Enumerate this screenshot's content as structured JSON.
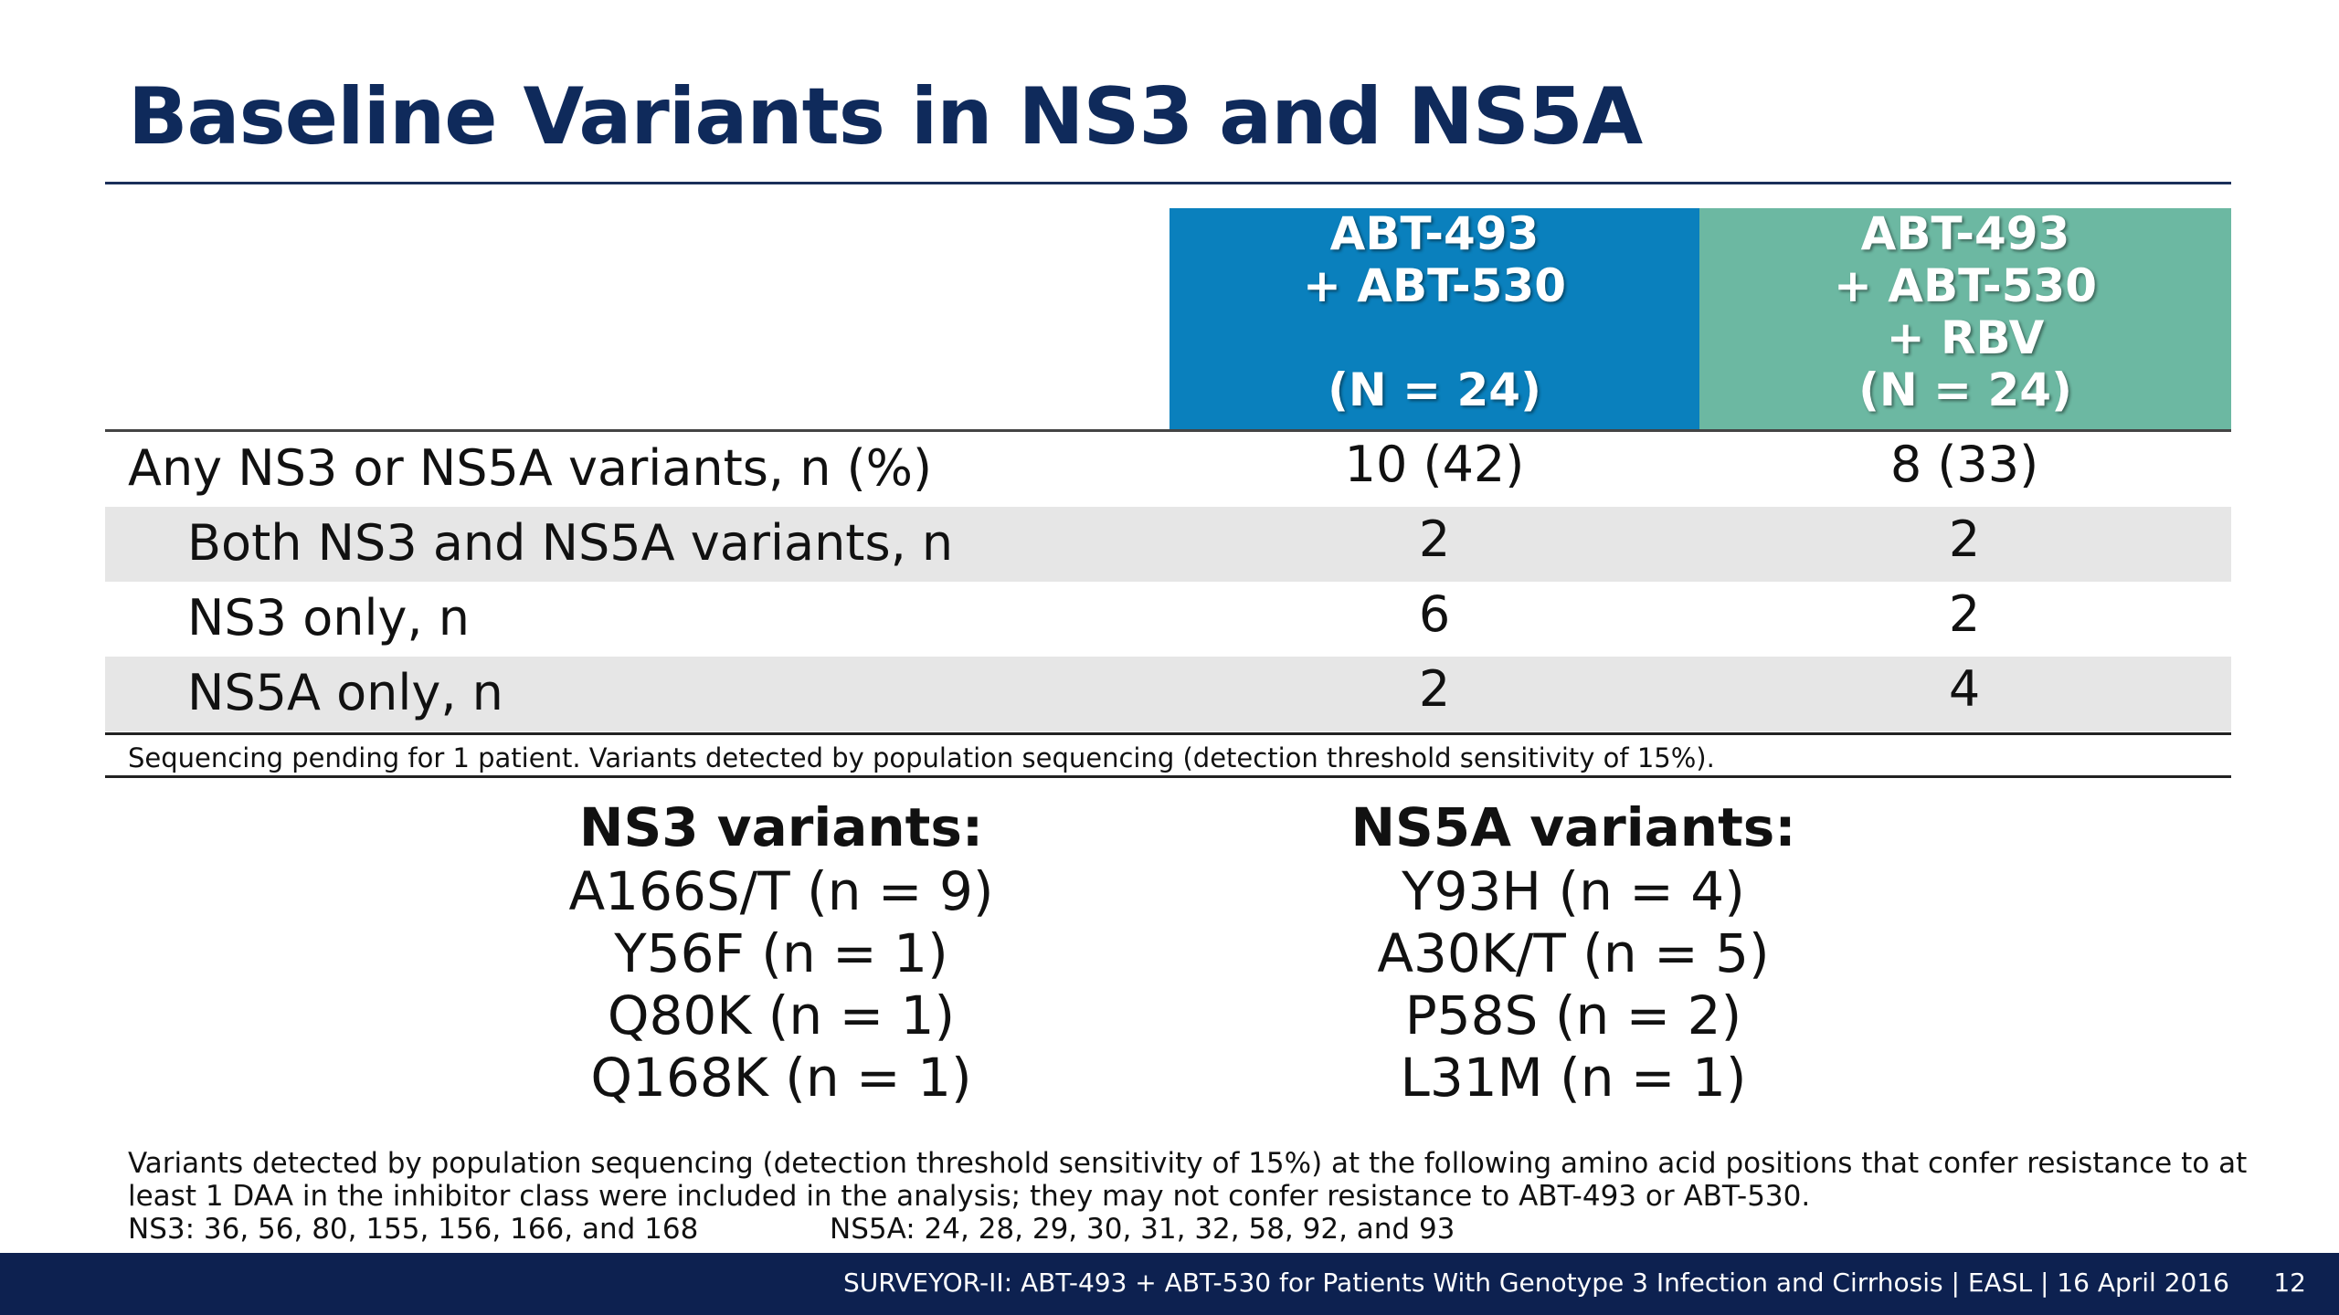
{
  "title": "Baseline Variants in NS3 and NS5A",
  "columns": [
    {
      "lines": [
        "ABT-493",
        "+ ABT-530",
        "",
        "(N = 24)"
      ],
      "color": "#0a80bd"
    },
    {
      "lines": [
        "ABT-493",
        "+ ABT-530",
        "+ RBV",
        "(N = 24)"
      ],
      "color": "#6cb8a2"
    }
  ],
  "rows": [
    {
      "label": "Any NS3 or NS5A variants, n (%)",
      "v1": "10 (42)",
      "v2": "8 (33)"
    },
    {
      "label": "Both NS3 and NS5A variants, n",
      "v1": "2",
      "v2": "2"
    },
    {
      "label": "NS3 only, n",
      "v1": "6",
      "v2": "2"
    },
    {
      "label": "NS5A only, n",
      "v1": "2",
      "v2": "4"
    }
  ],
  "table_note": "Sequencing pending for 1 patient. Variants detected by population sequencing (detection threshold sensitivity of 15%).",
  "ns3": {
    "heading": "NS3 variants:",
    "items": [
      "A166S/T (n = 9)",
      "Y56F (n = 1)",
      "Q80K (n = 1)",
      "Q168K (n = 1)"
    ]
  },
  "ns5a": {
    "heading": "NS5A variants:",
    "items": [
      "Y93H (n = 4)",
      "A30K/T (n = 5)",
      "P58S (n = 2)",
      "L31M (n = 1)"
    ]
  },
  "footnote": {
    "line1": "Variants detected by population sequencing (detection threshold sensitivity of 15%) at the following amino acid positions that confer resistance to at",
    "line2": "least 1 DAA in the inhibitor class were included in the analysis; they may not confer resistance to ABT-493 or ABT-530.",
    "ns3_positions": "NS3: 36, 56, 80, 155, 156, 166, and 168",
    "ns5a_positions": "NS5A: 24, 28, 29, 30, 31, 32, 58, 92, and 93"
  },
  "footer": {
    "text": "SURVEYOR-II: ABT-493 + ABT-530 for Patients With Genotype 3 Infection and Cirrhosis  | EASL | 16 April 2016",
    "page": "12"
  }
}
